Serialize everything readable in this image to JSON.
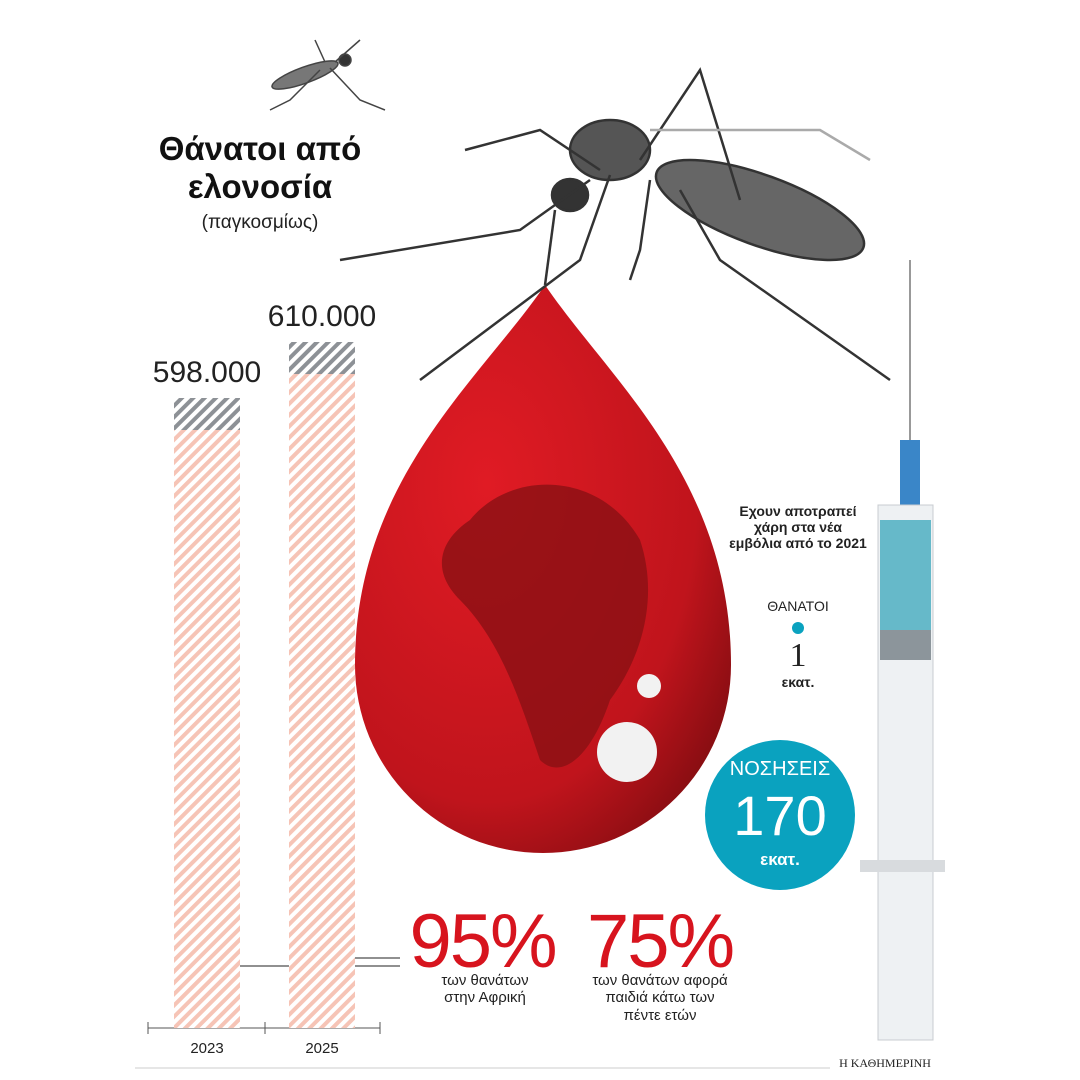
{
  "chart_data": {
    "type": "bar",
    "title": "Θάνατοι από ελονοσία",
    "subtitle": "(παγκοσμίως)",
    "categories": [
      "2023",
      "2025"
    ],
    "values": [
      598000,
      610000
    ],
    "value_labels": [
      "598.000",
      "610.000"
    ],
    "ylim": [
      463000,
      625000
    ],
    "color": "#f6c4b6",
    "annotations": [
      {
        "value": "95%",
        "text": "των θανάτων στην Αφρική"
      },
      {
        "value": "75%",
        "text": "των θανάτων αφορά παιδιά κάτω των πέντε ετών"
      }
    ],
    "vaccine_note": "Εχουν αποτραπεί χάρη στα νέα εμβόλια από το 2021",
    "deaths_label": "ΘΑΝΑΤΟΙ",
    "deaths_value": "1",
    "deaths_unit": "εκατ.",
    "cases_label": "ΝΟΣΗΣΕΙΣ",
    "cases_value": "170",
    "cases_unit": "εκατ.",
    "source": "Η ΚΑΘΗΜΕΡΙΝΗ"
  }
}
